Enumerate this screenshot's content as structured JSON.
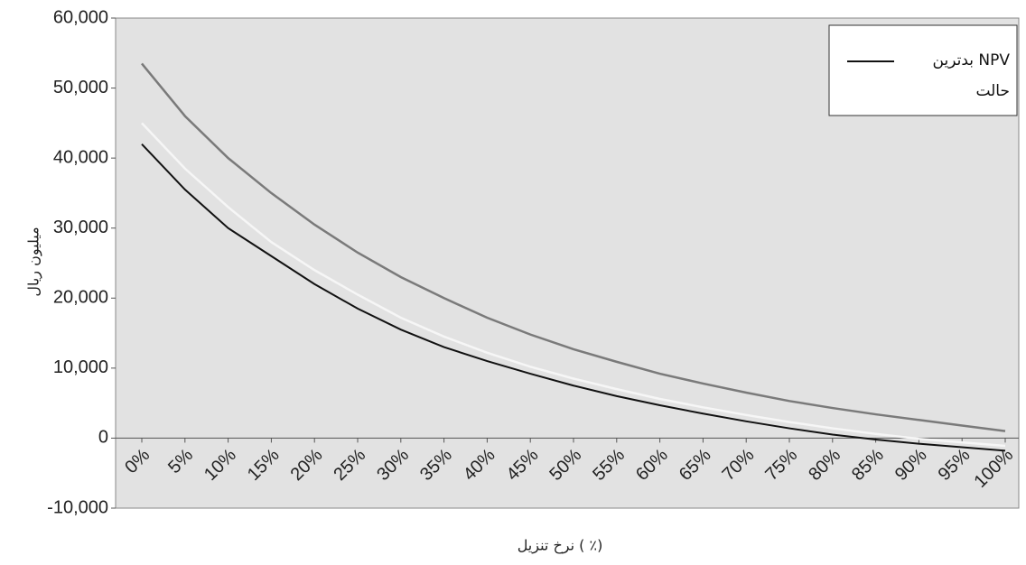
{
  "chart_data": {
    "type": "line",
    "ylabel": "میلیون ریال",
    "xlabel": "نرخ تنزیل ( ٪)",
    "categories": [
      "0%",
      "5%",
      "10%",
      "15%",
      "20%",
      "25%",
      "30%",
      "35%",
      "40%",
      "45%",
      "50%",
      "55%",
      "60%",
      "65%",
      "70%",
      "75%",
      "80%",
      "85%",
      "90%",
      "95%",
      "100%"
    ],
    "series": [
      {
        "color": "#7a7a7a",
        "values": [
          53500,
          46000,
          40000,
          35000,
          30500,
          26500,
          23000,
          20000,
          17200,
          14800,
          12700,
          10900,
          9200,
          7800,
          6500,
          5300,
          4300,
          3400,
          2600,
          1800,
          1000
        ]
      },
      {
        "color": "#f6f6f6",
        "values": [
          45000,
          38500,
          33000,
          28000,
          24000,
          20500,
          17200,
          14500,
          12200,
          10200,
          8500,
          7000,
          5600,
          4400,
          3300,
          2300,
          1400,
          600,
          -100,
          -600,
          -1100
        ]
      },
      {
        "name": "NPV بدترین حالت",
        "color": "#111111",
        "values": [
          42000,
          35500,
          30000,
          26000,
          22000,
          18500,
          15500,
          13000,
          11000,
          9200,
          7500,
          6000,
          4700,
          3500,
          2400,
          1400,
          500,
          -200,
          -800,
          -1300,
          -1800
        ]
      }
    ],
    "ylim": [
      -10000,
      60000
    ],
    "yticks": [
      {
        "value": -10000,
        "label": "-10,000"
      },
      0,
      {
        "value": 10000,
        "label": "10,000"
      },
      {
        "value": 20000,
        "label": "20,000"
      },
      {
        "value": 30000,
        "label": "30,000"
      },
      {
        "value": 40000,
        "label": "40,000"
      },
      {
        "value": 50000,
        "label": "50,000"
      },
      {
        "value": 60000,
        "label": "60,000"
      }
    ],
    "grid": false,
    "legend": "upper right"
  }
}
